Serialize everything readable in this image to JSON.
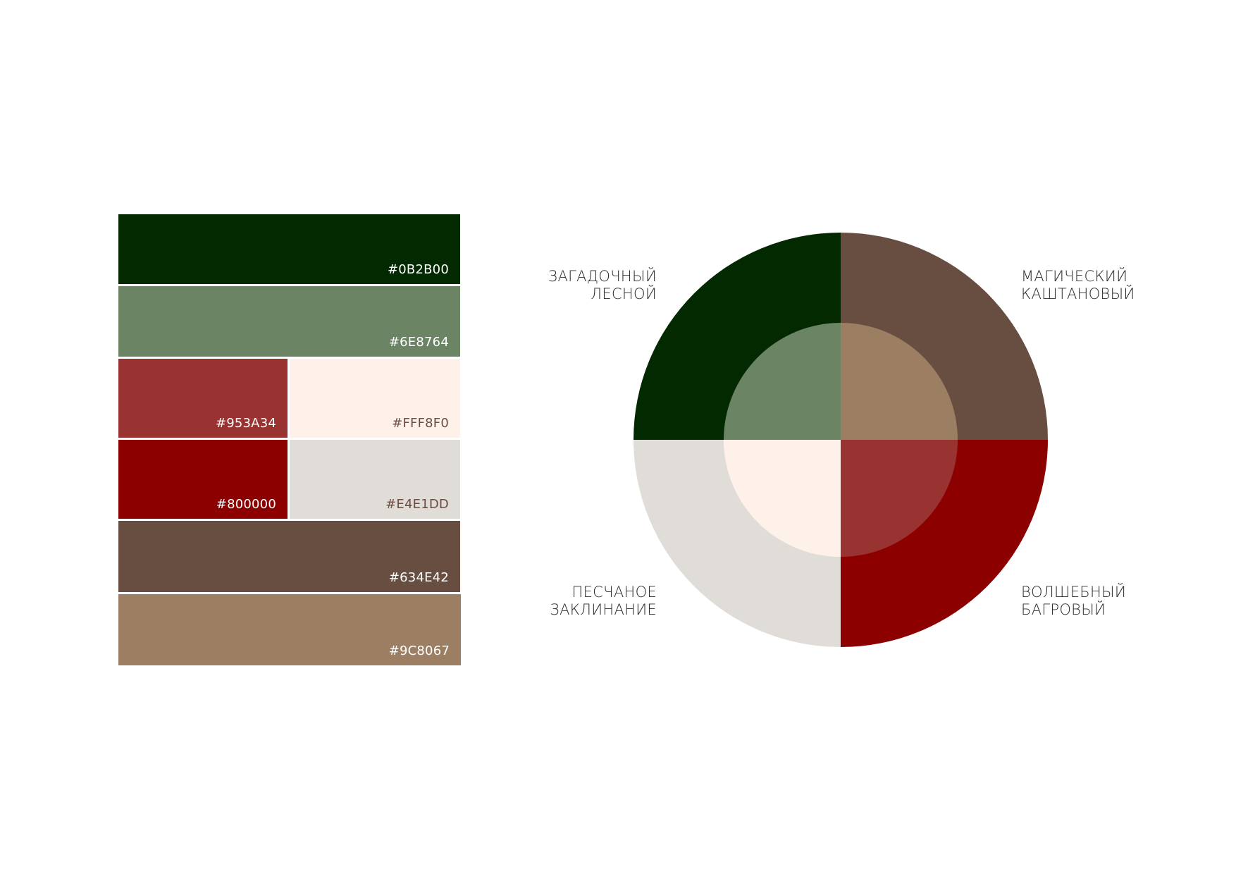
{
  "swatches": [
    {
      "id": "forest",
      "hex": "#0B2B00",
      "color": "#022900",
      "text_style": "light"
    },
    {
      "id": "sage",
      "hex": "#6E8764",
      "color": "#6B8464",
      "text_style": "light"
    },
    {
      "id": "brick",
      "hex": "#953A34",
      "color": "#983331",
      "text_style": "light"
    },
    {
      "id": "cream",
      "hex": "#FFF8F0",
      "color": "#FEF1E9",
      "text_style": "dark"
    },
    {
      "id": "maroon",
      "hex": "#800000",
      "color": "#8C0000",
      "text_style": "light"
    },
    {
      "id": "sand",
      "hex": "#E4E1DD",
      "color": "#E0DDD8",
      "text_style": "dark"
    },
    {
      "id": "chestnut",
      "hex": "#634E42",
      "color": "#674E41",
      "text_style": "light"
    },
    {
      "id": "tan",
      "hex": "#9C8067",
      "color": "#9C7F63",
      "text_style": "light"
    }
  ],
  "wheel": {
    "outer": {
      "top_left": "#022900",
      "top_right": "#674E41",
      "bottom_right": "#8C0000",
      "bottom_left": "#E0DDD8"
    },
    "inner": {
      "top_left": "#6B8464",
      "top_right": "#9C7F63",
      "bottom_right": "#983331",
      "bottom_left": "#FEF1E9"
    }
  },
  "labels": {
    "top_left": "ЗАГАДОЧНЫЙ\nЛЕСНОЙ",
    "top_right": "МАГИЧЕСКИЙ\nКАШТАНОВЫЙ",
    "bottom_left": "ПЕСЧАНОЕ\nЗАКЛИНАНИЕ",
    "bottom_right": "ВОЛШЕБНЫЙ\nБАГРОВЫЙ"
  }
}
